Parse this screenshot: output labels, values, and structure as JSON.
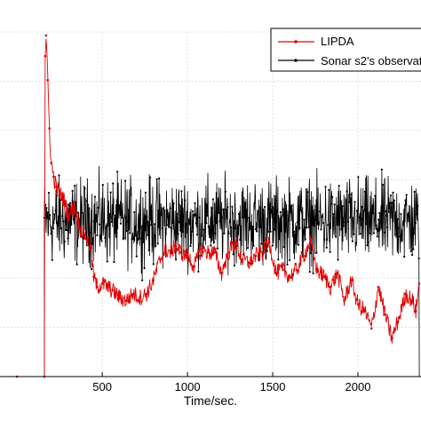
{
  "chart_data": {
    "type": "line",
    "title": "",
    "xlabel": "Time/sec.",
    "ylabel": "",
    "xlim": [
      -100,
      2370
    ],
    "ylim": [
      0,
      1
    ],
    "x_ticks": [
      500,
      1000,
      1500,
      2000
    ],
    "x_tick_labels": [
      "500",
      "1000",
      "1500",
      "2000"
    ],
    "grid": true,
    "legend_position": "top-right",
    "series": [
      {
        "name": "LIPDA",
        "color": "#e00000",
        "marker": "dot",
        "x": [
          0,
          160,
          165,
          170,
          180,
          190,
          200,
          215,
          230,
          250,
          270,
          300,
          340,
          370,
          400,
          430,
          450,
          470,
          500,
          530,
          560,
          600,
          640,
          680,
          720,
          760,
          800,
          840,
          870,
          900,
          930,
          960,
          1000,
          1040,
          1080,
          1120,
          1160,
          1200,
          1240,
          1280,
          1320,
          1360,
          1400,
          1440,
          1480,
          1520,
          1560,
          1600,
          1640,
          1680,
          1720,
          1760,
          1800,
          1840,
          1880,
          1920,
          1960,
          2000,
          2040,
          2080,
          2120,
          2160,
          2200,
          2240,
          2280,
          2320,
          2340,
          2360
        ],
        "y": [
          0.0,
          0.0,
          0.93,
          0.99,
          0.86,
          0.72,
          0.62,
          0.58,
          0.55,
          0.53,
          0.52,
          0.47,
          0.49,
          0.43,
          0.41,
          0.38,
          0.29,
          0.26,
          0.27,
          0.26,
          0.25,
          0.23,
          0.22,
          0.24,
          0.23,
          0.24,
          0.28,
          0.34,
          0.37,
          0.36,
          0.38,
          0.36,
          0.35,
          0.32,
          0.37,
          0.36,
          0.36,
          0.3,
          0.36,
          0.39,
          0.34,
          0.33,
          0.35,
          0.36,
          0.39,
          0.3,
          0.31,
          0.29,
          0.31,
          0.35,
          0.39,
          0.31,
          0.29,
          0.26,
          0.3,
          0.22,
          0.28,
          0.21,
          0.19,
          0.14,
          0.26,
          0.18,
          0.11,
          0.17,
          0.24,
          0.22,
          0.19,
          0.27
        ]
      },
      {
        "name": "Sonar s2's observat",
        "color": "#000000",
        "marker": "dot",
        "x_start": 160,
        "x_end": 2360,
        "baseline": 0.45,
        "noise_amplitude": 0.06
      }
    ]
  }
}
